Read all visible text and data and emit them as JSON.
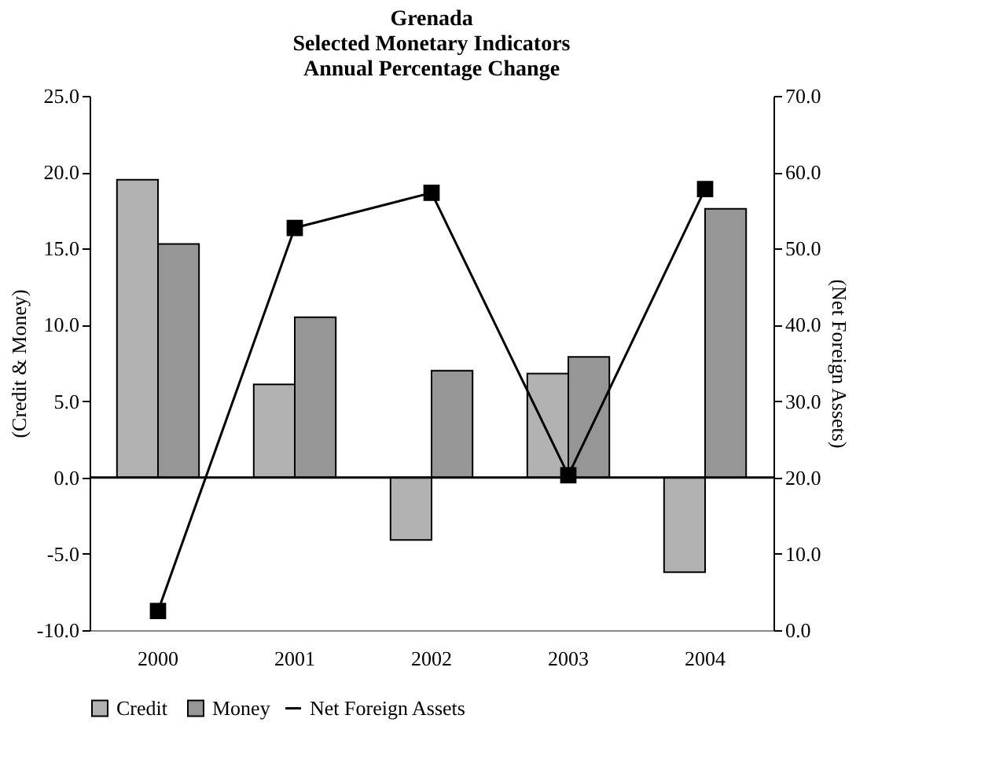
{
  "chart_data": {
    "type": "bar",
    "title": "Grenada",
    "subtitle": "Selected Monetary Indicators\nAnnual Percentage Change",
    "ylabel": "(Credit & Money)",
    "y2label": "(Net Foreign Assets)",
    "categories": [
      "2000",
      "2001",
      "2002",
      "2003",
      "2004"
    ],
    "series": [
      {
        "name": "Credit",
        "color": "#b2b2b2",
        "values": [
          19.5,
          6.1,
          -4.1,
          6.8,
          -6.2
        ]
      },
      {
        "name": "Money",
        "color": "#969696",
        "values": [
          15.3,
          10.5,
          7.0,
          7.9,
          17.6
        ]
      },
      {
        "name": "Net Foreign Assets",
        "type": "line",
        "axis": "y2",
        "color": "#000000",
        "marker": "square",
        "line_style": "solid",
        "values": [
          2.5,
          52.7,
          57.3,
          20.3,
          57.8
        ]
      }
    ],
    "ylim": [
      -10,
      25
    ],
    "yticks": [
      {
        "value": -10,
        "label": "-10.0"
      },
      {
        "value": -5,
        "label": "-5.0"
      },
      {
        "value": 0,
        "label": "0.0"
      },
      {
        "value": 5,
        "label": "5.0"
      },
      {
        "value": 10,
        "label": "10.0"
      },
      {
        "value": 15,
        "label": "15.0"
      },
      {
        "value": 20,
        "label": "20.0"
      },
      {
        "value": 25,
        "label": "25.0"
      }
    ],
    "y2lim": [
      0,
      70
    ],
    "y2ticks": [
      {
        "value": 0,
        "label": "0.0"
      },
      {
        "value": 10,
        "label": "10.0"
      },
      {
        "value": 20,
        "label": "20.0"
      },
      {
        "value": 30,
        "label": "30.0"
      },
      {
        "value": 40,
        "label": "40.0"
      },
      {
        "value": 50,
        "label": "50.0"
      },
      {
        "value": 60,
        "label": "60.0"
      },
      {
        "value": 70,
        "label": "70.0"
      }
    ],
    "ref_lines": [
      {
        "axis": "y",
        "value": 0,
        "color": "#000000"
      }
    ],
    "grid": false,
    "legend": "bottom"
  }
}
